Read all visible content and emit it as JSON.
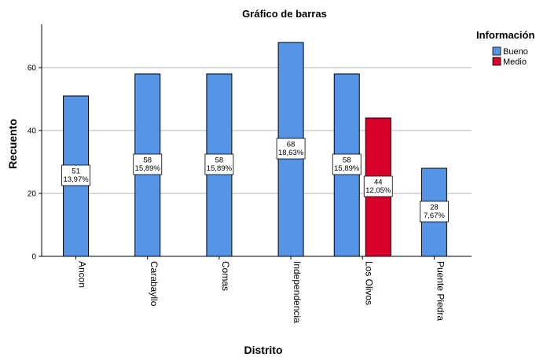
{
  "chart_data": {
    "type": "bar",
    "title": "Gráfico de barras",
    "xlabel": "Distrito",
    "ylabel": "Recuento",
    "categories": [
      "Ancon",
      "Carabayllo",
      "Comas",
      "Independencia",
      "Los Olivos",
      "Puente Piedra"
    ],
    "yticks": [
      "0",
      "20",
      "40",
      "60"
    ],
    "ylim": [
      0,
      72
    ],
    "grid": true,
    "legend": {
      "title": "Información",
      "placement": "top-right"
    },
    "series": [
      {
        "name": "Bueno",
        "color": "#5694e5",
        "values": [
          51,
          null,
          null,
          68,
          58,
          null
        ],
        "labels": [
          [
            "51",
            "13,97%"
          ],
          null,
          null,
          [
            "68",
            "18,63%"
          ],
          [
            "58",
            "15,89%"
          ],
          null
        ]
      },
      {
        "name": "Medio",
        "color": "#d6002b",
        "values": [
          null,
          null,
          null,
          null,
          44,
          null
        ],
        "labels": [
          null,
          null,
          null,
          null,
          [
            "44",
            "12,05%"
          ],
          null
        ]
      }
    ],
    "single_bars": [
      {
        "category_index": 1,
        "series_index": 0,
        "value": 58,
        "label": [
          "58",
          "15,89%"
        ]
      },
      {
        "category_index": 2,
        "series_index": 0,
        "value": 58,
        "label": [
          "58",
          "15,89%"
        ]
      },
      {
        "category_index": 5,
        "series_index": 0,
        "value": 28,
        "label": [
          "28",
          "7,67%"
        ]
      }
    ]
  }
}
